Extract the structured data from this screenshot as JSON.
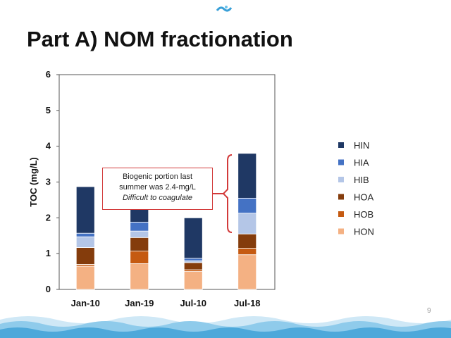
{
  "slide": {
    "title": "Part A) NOM fractionation",
    "page_number": "9"
  },
  "callout": {
    "line1": "Biogenic portion last",
    "line2": "summer was 2.4-mg/L",
    "line3": "Difficult to coagulate"
  },
  "colors": {
    "HIN": "#1f3864",
    "HIA": "#4472c4",
    "HIB": "#b4c6e7",
    "HOA": "#843c0c",
    "HOB": "#c55a11",
    "HON": "#f4b183",
    "callout_border": "#d23a3a"
  },
  "chart_data": {
    "type": "bar",
    "stacked": true,
    "title": "",
    "xlabel": "",
    "ylabel": "TOC (mg/L)",
    "ylim": [
      0,
      6
    ],
    "yticks": [
      "0",
      "1",
      "2",
      "3",
      "4",
      "5",
      "6"
    ],
    "categories": [
      "Jan-10",
      "Jan-19",
      "Jul-10",
      "Jul-18"
    ],
    "series": [
      {
        "name": "HON",
        "values": [
          0.65,
          0.72,
          0.5,
          0.97
        ]
      },
      {
        "name": "HOB",
        "values": [
          0.05,
          0.35,
          0.05,
          0.18
        ]
      },
      {
        "name": "HOA",
        "values": [
          0.47,
          0.38,
          0.2,
          0.4
        ]
      },
      {
        "name": "HIB",
        "values": [
          0.3,
          0.18,
          0.05,
          0.58
        ]
      },
      {
        "name": "HIA",
        "values": [
          0.1,
          0.25,
          0.07,
          0.42
        ]
      },
      {
        "name": "HIN",
        "values": [
          1.3,
          1.1,
          1.13,
          1.25
        ]
      }
    ],
    "legend_order": [
      "HIN",
      "HIA",
      "HIB",
      "HOA",
      "HOB",
      "HON"
    ],
    "legend_position": "right",
    "grid": false
  }
}
